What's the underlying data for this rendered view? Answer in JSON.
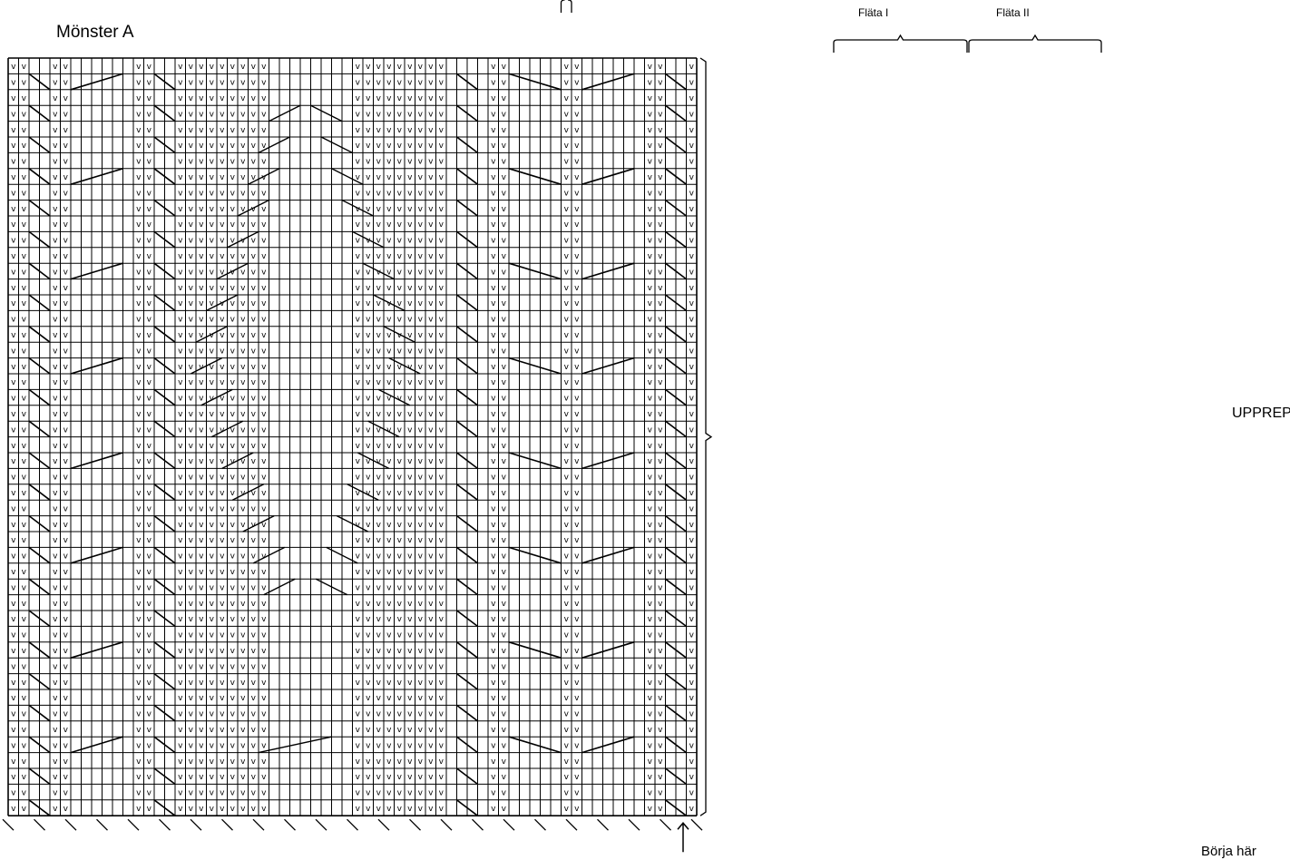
{
  "title": "Mönster A",
  "braces": [
    {
      "label": "Fläta I"
    },
    {
      "label": "Fläta II"
    }
  ],
  "repeat_label": "UPPREPAS",
  "start_label": "Börja här",
  "stitch_symbol": "v",
  "grid": {
    "columns": 66,
    "rows": 48
  },
  "colors": {
    "line": "#000000",
    "background": "#ffffff"
  },
  "v_columns_all_rows": [
    0,
    1,
    4,
    5,
    12,
    13,
    46,
    47,
    53,
    54,
    61,
    62,
    65,
    66
  ]
}
